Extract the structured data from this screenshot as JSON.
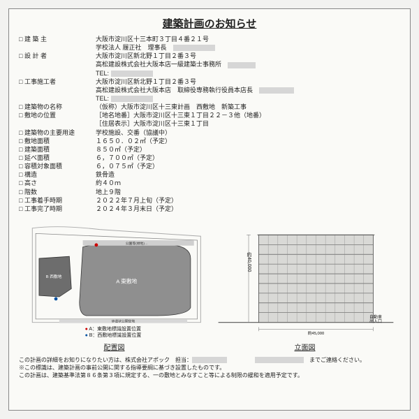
{
  "title": "建築計画のお知らせ",
  "rows": [
    {
      "label": "建 築 主",
      "value": "大阪市淀川区十三本町３丁目４番２１号",
      "sublines": [
        "学校法人 履正社　理事長　<redact:60>"
      ]
    },
    {
      "label": "設 計 者",
      "value": "大阪市淀川区新北野１丁目２番３号",
      "sublines": [
        "高松建設株式会社大阪本店一級建築士事務所　<redact:40>",
        "TEL: <redact:60>"
      ]
    },
    {
      "label": "工事施工者",
      "value": "大阪市淀川区新北野１丁目２番３号",
      "sublines": [
        "高松建設株式会社大阪本店　取締役専務執行役員本店長　<redact:50>",
        "TEL: <redact:60>"
      ]
    },
    {
      "label": "建築物の名称",
      "value": "（仮称）大阪市淀川区十三東計画　西敷地　新築工事"
    },
    {
      "label": "敷地の位置",
      "value": "［地名地番］大阪市淀川区十三東１丁目２２－３他（地番）",
      "sublines": [
        "［住居表示］大阪市淀川区十三東１丁目"
      ]
    },
    {
      "label": "建築物の主要用途",
      "value": "学校施設、交番（協議中）"
    },
    {
      "label": "敷地面積",
      "value": "１６５０．０２㎡（予定）"
    },
    {
      "label": "建築面積",
      "value": "８５０㎡（予定）"
    },
    {
      "label": "延べ面積",
      "value": "６，７００㎡（予定）"
    },
    {
      "label": "容積対象面積",
      "value": "６，０７５㎡（予定）"
    },
    {
      "label": "構造",
      "value": "鉄骨造"
    },
    {
      "label": "高さ",
      "value": "約４０ｍ"
    },
    {
      "label": "階数",
      "value": "地上９階"
    },
    {
      "label": "工事着手時期",
      "value": "２０２２年７月上旬（予定）"
    },
    {
      "label": "工事完了時期",
      "value": "２０２４年３月末日（予定）"
    }
  ],
  "siteplan": {
    "caption": "配置図",
    "legend_a": "A：東敷地標識設置位置",
    "legend_b": "B：西敷地標識設置位置",
    "labels": {
      "east": "A 東敷地",
      "west": "B 西敷地",
      "road1": "公園等(緑地)…",
      "road2": "歩道状公開空地"
    },
    "colors": {
      "east_fill": "#8f8f8f",
      "west_fill": "#6d6d6d",
      "outline": "#333",
      "hatch": "#bbb"
    }
  },
  "elevation": {
    "caption": "立面図",
    "height_label": "約40,000",
    "width_label": "約45,000",
    "entrance_label": "自動車\n出入口",
    "floors": 9,
    "colors": {
      "wall": "#d9d9d6",
      "line": "#444",
      "ground": "#555"
    }
  },
  "footer": {
    "line1_pre": "この計画の詳細をお知りになりたい方は、株式会社アポック　担当：",
    "line1_post": "　までご連絡ください。",
    "line2": "※この標識は、建築計画の事前公開に関する指導要綱に基づき設置したものです。",
    "line3": "この計画は、建築基準法第８６条第３項に規定する、一の敷地とみなすこと等による制限の緩和を適用予定です。"
  }
}
